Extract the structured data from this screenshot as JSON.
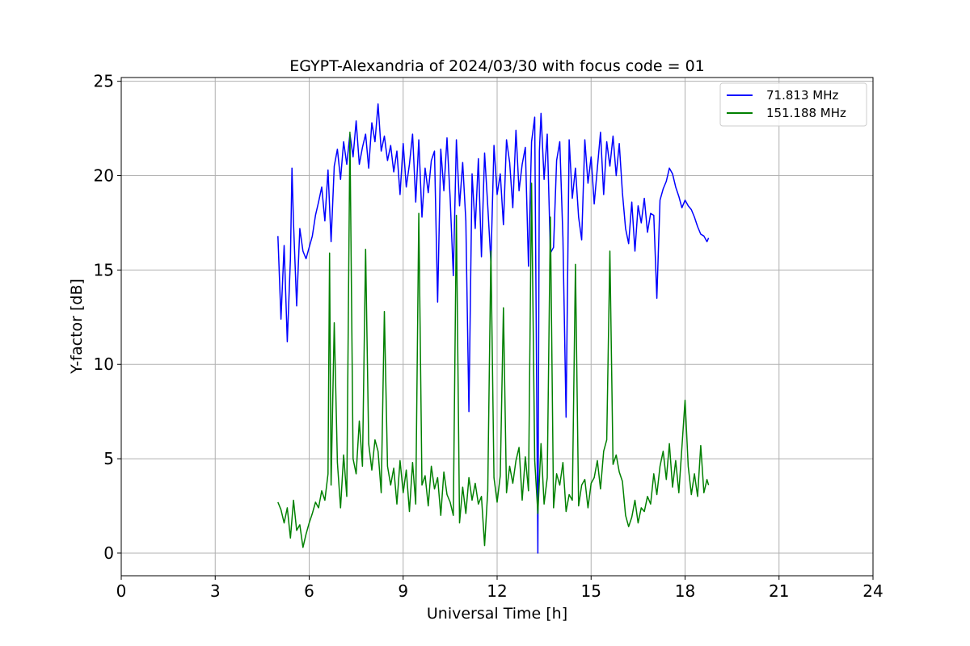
{
  "chart_data": {
    "type": "line",
    "title": "EGYPT-Alexandria of 2024/03/30 with focus code = 01",
    "xlabel": "Universal Time [h]",
    "ylabel": "Y-factor [dB]",
    "xlim": [
      0,
      24
    ],
    "ylim": [
      -1.2,
      25.2
    ],
    "xticks": [
      0,
      3,
      6,
      9,
      12,
      15,
      18,
      21,
      24
    ],
    "yticks": [
      0,
      5,
      10,
      15,
      20,
      25
    ],
    "grid": true,
    "legend_position": "top-right",
    "series": [
      {
        "name": "  71.813 MHz",
        "color": "#0000ff",
        "x": [
          5.0,
          5.1,
          5.2,
          5.3,
          5.4,
          5.45,
          5.5,
          5.6,
          5.7,
          5.8,
          5.9,
          6.0,
          6.1,
          6.2,
          6.3,
          6.4,
          6.5,
          6.6,
          6.7,
          6.8,
          6.9,
          7.0,
          7.1,
          7.2,
          7.3,
          7.4,
          7.5,
          7.6,
          7.7,
          7.8,
          7.9,
          8.0,
          8.1,
          8.2,
          8.3,
          8.4,
          8.5,
          8.6,
          8.7,
          8.8,
          8.9,
          9.0,
          9.1,
          9.2,
          9.3,
          9.4,
          9.5,
          9.6,
          9.7,
          9.8,
          9.9,
          10.0,
          10.1,
          10.2,
          10.3,
          10.4,
          10.5,
          10.6,
          10.7,
          10.8,
          10.9,
          11.0,
          11.1,
          11.2,
          11.3,
          11.4,
          11.5,
          11.6,
          11.7,
          11.8,
          11.9,
          12.0,
          12.1,
          12.2,
          12.3,
          12.4,
          12.5,
          12.6,
          12.7,
          12.8,
          12.9,
          13.0,
          13.1,
          13.2,
          13.3,
          13.35,
          13.4,
          13.5,
          13.6,
          13.7,
          13.8,
          13.9,
          14.0,
          14.1,
          14.2,
          14.3,
          14.4,
          14.5,
          14.6,
          14.7,
          14.8,
          14.9,
          15.0,
          15.1,
          15.2,
          15.3,
          15.4,
          15.5,
          15.6,
          15.7,
          15.8,
          15.9,
          16.0,
          16.1,
          16.2,
          16.3,
          16.4,
          16.5,
          16.6,
          16.7,
          16.8,
          16.9,
          17.0,
          17.1,
          17.2,
          17.3,
          17.4,
          17.5,
          17.6,
          17.7,
          17.8,
          17.9,
          18.0,
          18.1,
          18.2,
          18.3,
          18.4,
          18.5,
          18.6,
          18.7,
          18.75
        ],
        "y": [
          16.8,
          12.4,
          16.3,
          11.2,
          15.6,
          20.4,
          17.5,
          13.1,
          17.2,
          16.0,
          15.6,
          16.2,
          16.8,
          17.9,
          18.6,
          19.4,
          17.6,
          20.3,
          16.5,
          20.5,
          21.4,
          19.8,
          21.8,
          20.6,
          22.2,
          21.0,
          22.9,
          20.6,
          21.5,
          22.2,
          20.4,
          22.8,
          21.8,
          23.8,
          21.3,
          22.1,
          20.8,
          21.6,
          20.2,
          21.3,
          19.0,
          21.7,
          19.4,
          20.6,
          22.2,
          18.6,
          21.9,
          17.8,
          20.4,
          19.1,
          20.8,
          21.3,
          13.3,
          21.4,
          19.2,
          22.0,
          18.8,
          14.7,
          21.9,
          18.4,
          20.7,
          17.6,
          7.5,
          20.1,
          17.2,
          20.9,
          15.7,
          21.2,
          18.4,
          15.4,
          21.6,
          19.0,
          20.1,
          17.4,
          21.9,
          20.7,
          18.3,
          22.4,
          19.2,
          20.6,
          21.5,
          15.2,
          21.8,
          23.1,
          0.0,
          21.3,
          23.3,
          19.8,
          22.2,
          15.9,
          16.2,
          20.8,
          21.8,
          16.7,
          7.2,
          21.9,
          18.8,
          20.4,
          17.8,
          16.6,
          21.9,
          19.6,
          21.0,
          18.5,
          20.4,
          22.3,
          19.0,
          21.8,
          20.5,
          22.1,
          20.0,
          21.7,
          19.1,
          17.2,
          16.4,
          18.6,
          16.0,
          18.4,
          17.5,
          18.8,
          17.0,
          18.0,
          17.9,
          13.5,
          18.7,
          19.3,
          19.7,
          20.4,
          20.1,
          19.4,
          18.9,
          18.3,
          18.7,
          18.4,
          18.2,
          17.8,
          17.3,
          16.9,
          16.8,
          16.5,
          16.7
        ]
      },
      {
        "name": "151.188 MHz",
        "color": "#008000",
        "x": [
          5.0,
          5.1,
          5.2,
          5.3,
          5.4,
          5.5,
          5.6,
          5.7,
          5.8,
          5.9,
          6.0,
          6.1,
          6.2,
          6.3,
          6.4,
          6.5,
          6.6,
          6.65,
          6.7,
          6.8,
          6.9,
          7.0,
          7.1,
          7.2,
          7.3,
          7.4,
          7.5,
          7.6,
          7.7,
          7.8,
          7.9,
          8.0,
          8.1,
          8.2,
          8.3,
          8.4,
          8.5,
          8.6,
          8.7,
          8.8,
          8.9,
          9.0,
          9.1,
          9.2,
          9.3,
          9.4,
          9.5,
          9.6,
          9.7,
          9.8,
          9.9,
          10.0,
          10.1,
          10.2,
          10.3,
          10.4,
          10.5,
          10.6,
          10.7,
          10.8,
          10.9,
          11.0,
          11.1,
          11.2,
          11.3,
          11.4,
          11.5,
          11.6,
          11.7,
          11.8,
          11.9,
          12.0,
          12.1,
          12.2,
          12.3,
          12.4,
          12.5,
          12.6,
          12.7,
          12.8,
          12.9,
          13.0,
          13.1,
          13.2,
          13.3,
          13.4,
          13.5,
          13.6,
          13.7,
          13.8,
          13.9,
          14.0,
          14.1,
          14.2,
          14.3,
          14.4,
          14.5,
          14.6,
          14.7,
          14.8,
          14.9,
          15.0,
          15.1,
          15.2,
          15.3,
          15.4,
          15.5,
          15.6,
          15.7,
          15.8,
          15.9,
          16.0,
          16.1,
          16.2,
          16.3,
          16.4,
          16.5,
          16.6,
          16.7,
          16.8,
          16.9,
          17.0,
          17.1,
          17.2,
          17.3,
          17.4,
          17.5,
          17.6,
          17.7,
          17.8,
          17.9,
          18.0,
          18.1,
          18.2,
          18.3,
          18.4,
          18.5,
          18.6,
          18.7,
          18.75
        ],
        "y": [
          2.7,
          2.3,
          1.6,
          2.4,
          0.8,
          2.8,
          1.2,
          1.5,
          0.3,
          1.0,
          1.6,
          2.1,
          2.7,
          2.4,
          3.3,
          2.8,
          4.2,
          15.9,
          3.6,
          12.2,
          4.8,
          2.4,
          5.2,
          3.0,
          22.3,
          5.0,
          4.2,
          7.0,
          4.6,
          16.1,
          5.8,
          4.4,
          6.0,
          5.4,
          3.2,
          12.8,
          4.6,
          3.6,
          4.5,
          2.6,
          4.9,
          3.2,
          4.4,
          2.2,
          4.8,
          2.6,
          18.0,
          3.6,
          4.1,
          2.5,
          4.6,
          3.4,
          4.0,
          2.0,
          4.3,
          3.1,
          2.7,
          2.0,
          17.9,
          1.6,
          3.5,
          2.1,
          4.0,
          2.8,
          3.7,
          2.6,
          3.0,
          0.4,
          3.3,
          16.0,
          4.0,
          2.7,
          4.1,
          13.0,
          3.2,
          4.6,
          3.7,
          4.9,
          5.6,
          2.8,
          5.1,
          3.3,
          19.6,
          4.9,
          2.1,
          5.8,
          2.6,
          4.0,
          17.8,
          2.4,
          4.2,
          3.6,
          4.8,
          2.2,
          3.1,
          2.8,
          15.3,
          2.5,
          3.6,
          3.9,
          2.4,
          3.7,
          4.0,
          4.9,
          3.4,
          5.4,
          6.0,
          16.0,
          4.7,
          5.2,
          4.3,
          3.8,
          2.0,
          1.4,
          1.9,
          2.8,
          1.6,
          2.4,
          2.2,
          3.0,
          2.6,
          4.2,
          3.1,
          4.6,
          5.4,
          3.9,
          5.8,
          3.5,
          4.9,
          3.2,
          5.6,
          8.1,
          4.6,
          3.1,
          4.2,
          3.0,
          5.7,
          3.2,
          3.9,
          3.6
        ]
      }
    ]
  }
}
